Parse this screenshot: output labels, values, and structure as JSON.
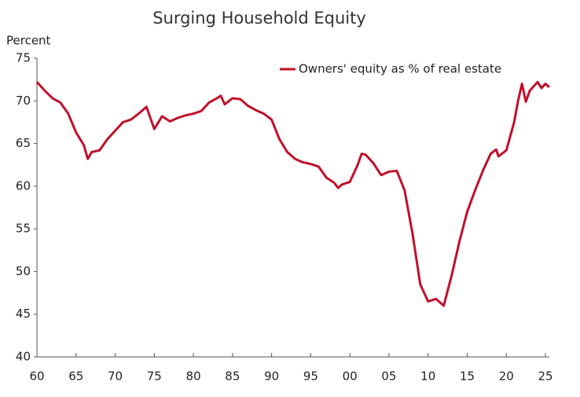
{
  "chart_data": {
    "type": "line",
    "title": "Surging Household Equity",
    "y_label": "Percent",
    "x": [
      1960,
      1961,
      1962,
      1963,
      1964,
      1965,
      1966,
      1966.5,
      1967,
      1968,
      1969,
      1970,
      1971,
      1972,
      1973,
      1974,
      1975,
      1976,
      1977,
      1978,
      1979,
      1980,
      1981,
      1982,
      1983,
      1983.5,
      1984,
      1985,
      1986,
      1987,
      1988,
      1989,
      1990,
      1991,
      1992,
      1993,
      1994,
      1995,
      1996,
      1997,
      1998,
      1998.5,
      1999,
      2000,
      2001,
      2001.5,
      2002,
      2003,
      2004,
      2005,
      2006,
      2007,
      2008,
      2009,
      2010,
      2011,
      2012,
      2013,
      2014,
      2015,
      2016,
      2017,
      2018,
      2018.7,
      2019,
      2020,
      2021,
      2021.5,
      2022,
      2022.5,
      2023,
      2024,
      2024.5,
      2025,
      2025.5
    ],
    "series": [
      {
        "name": "Owners' equity as % of real estate",
        "color": "#c0102a",
        "values": [
          72.2,
          71.2,
          70.3,
          69.8,
          68.5,
          66.3,
          64.8,
          63.2,
          64.0,
          64.2,
          65.5,
          66.5,
          67.5,
          67.8,
          68.5,
          69.3,
          66.7,
          68.2,
          67.6,
          68.0,
          68.3,
          68.5,
          68.8,
          69.8,
          70.3,
          70.6,
          69.6,
          70.3,
          70.2,
          69.4,
          68.9,
          68.5,
          67.8,
          65.5,
          64.0,
          63.2,
          62.8,
          62.6,
          62.3,
          61.0,
          60.4,
          59.8,
          60.2,
          60.5,
          62.5,
          63.8,
          63.7,
          62.7,
          61.3,
          61.7,
          61.8,
          59.5,
          54.5,
          48.5,
          46.5,
          46.8,
          46.0,
          49.5,
          53.5,
          57.0,
          59.5,
          61.8,
          63.8,
          64.3,
          63.5,
          64.2,
          67.5,
          70.0,
          72.0,
          69.9,
          71.2,
          72.2,
          71.5,
          72.0,
          71.6
        ]
      }
    ],
    "xlim": [
      1960,
      2025.5
    ],
    "xticks": [
      {
        "value": 1960,
        "label": "60"
      },
      {
        "value": 1965,
        "label": "65"
      },
      {
        "value": 1970,
        "label": "70"
      },
      {
        "value": 1975,
        "label": "75"
      },
      {
        "value": 1980,
        "label": "80"
      },
      {
        "value": 1985,
        "label": "85"
      },
      {
        "value": 1990,
        "label": "90"
      },
      {
        "value": 1995,
        "label": "95"
      },
      {
        "value": 2000,
        "label": "00"
      },
      {
        "value": 2005,
        "label": "05"
      },
      {
        "value": 2010,
        "label": "10"
      },
      {
        "value": 2015,
        "label": "15"
      },
      {
        "value": 2020,
        "label": "20"
      },
      {
        "value": 2025,
        "label": "25"
      }
    ],
    "ylim": [
      40,
      75
    ],
    "yticks": [
      40,
      45,
      50,
      55,
      60,
      65,
      70,
      75
    ],
    "grid": false,
    "legend": "upper-right"
  }
}
